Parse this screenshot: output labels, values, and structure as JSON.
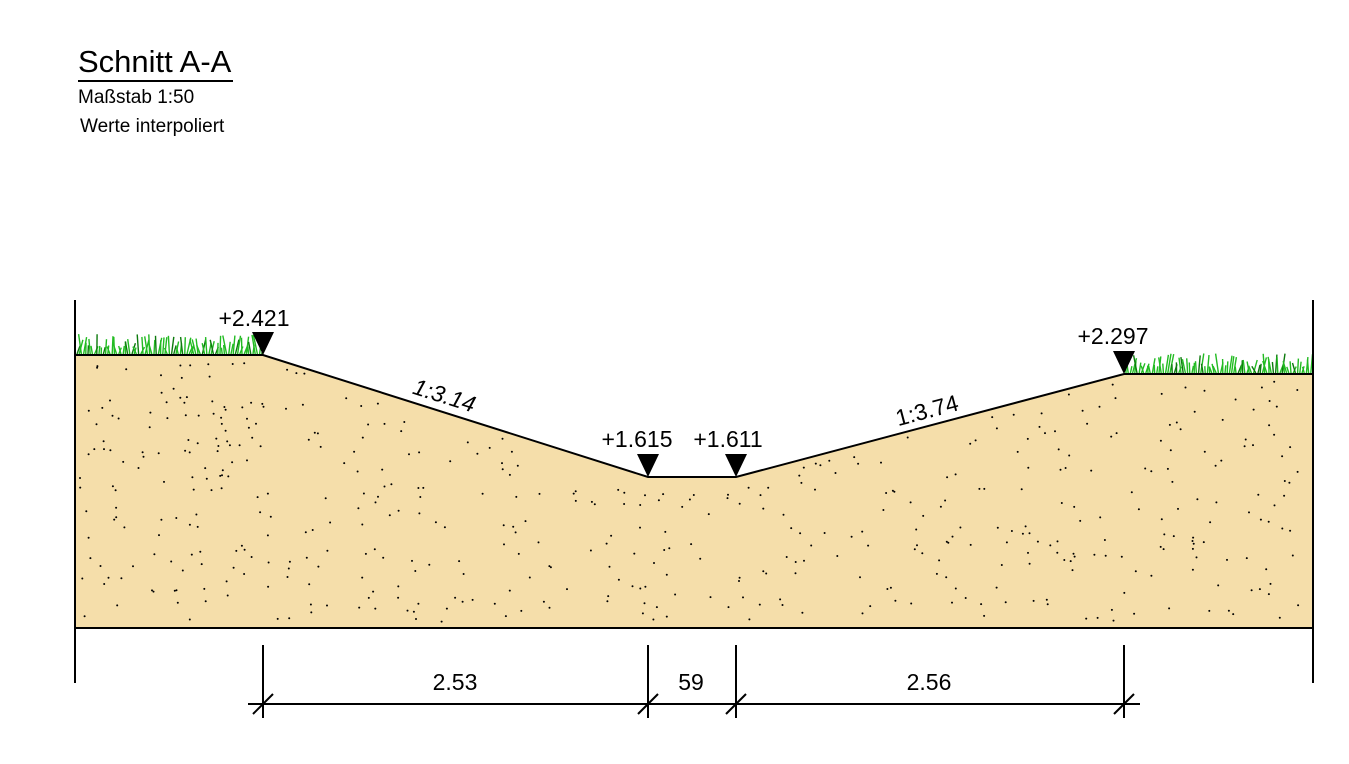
{
  "header": {
    "title": "Schnitt A-A",
    "scale": "Maßstab 1:50",
    "note": "Werte interpoliert"
  },
  "elevations": {
    "left_top": "+2.421",
    "bottom_left": "+1.615",
    "bottom_right": "+1.611",
    "right_top": "+2.297"
  },
  "slopes": {
    "left": "1:3.14",
    "right": "1:3.74"
  },
  "dimensions": {
    "left": "2.53",
    "middle": "59",
    "right": "2.56"
  },
  "colors": {
    "soil": "#f5deaa",
    "grass": "#22bb22",
    "line": "#000000"
  }
}
